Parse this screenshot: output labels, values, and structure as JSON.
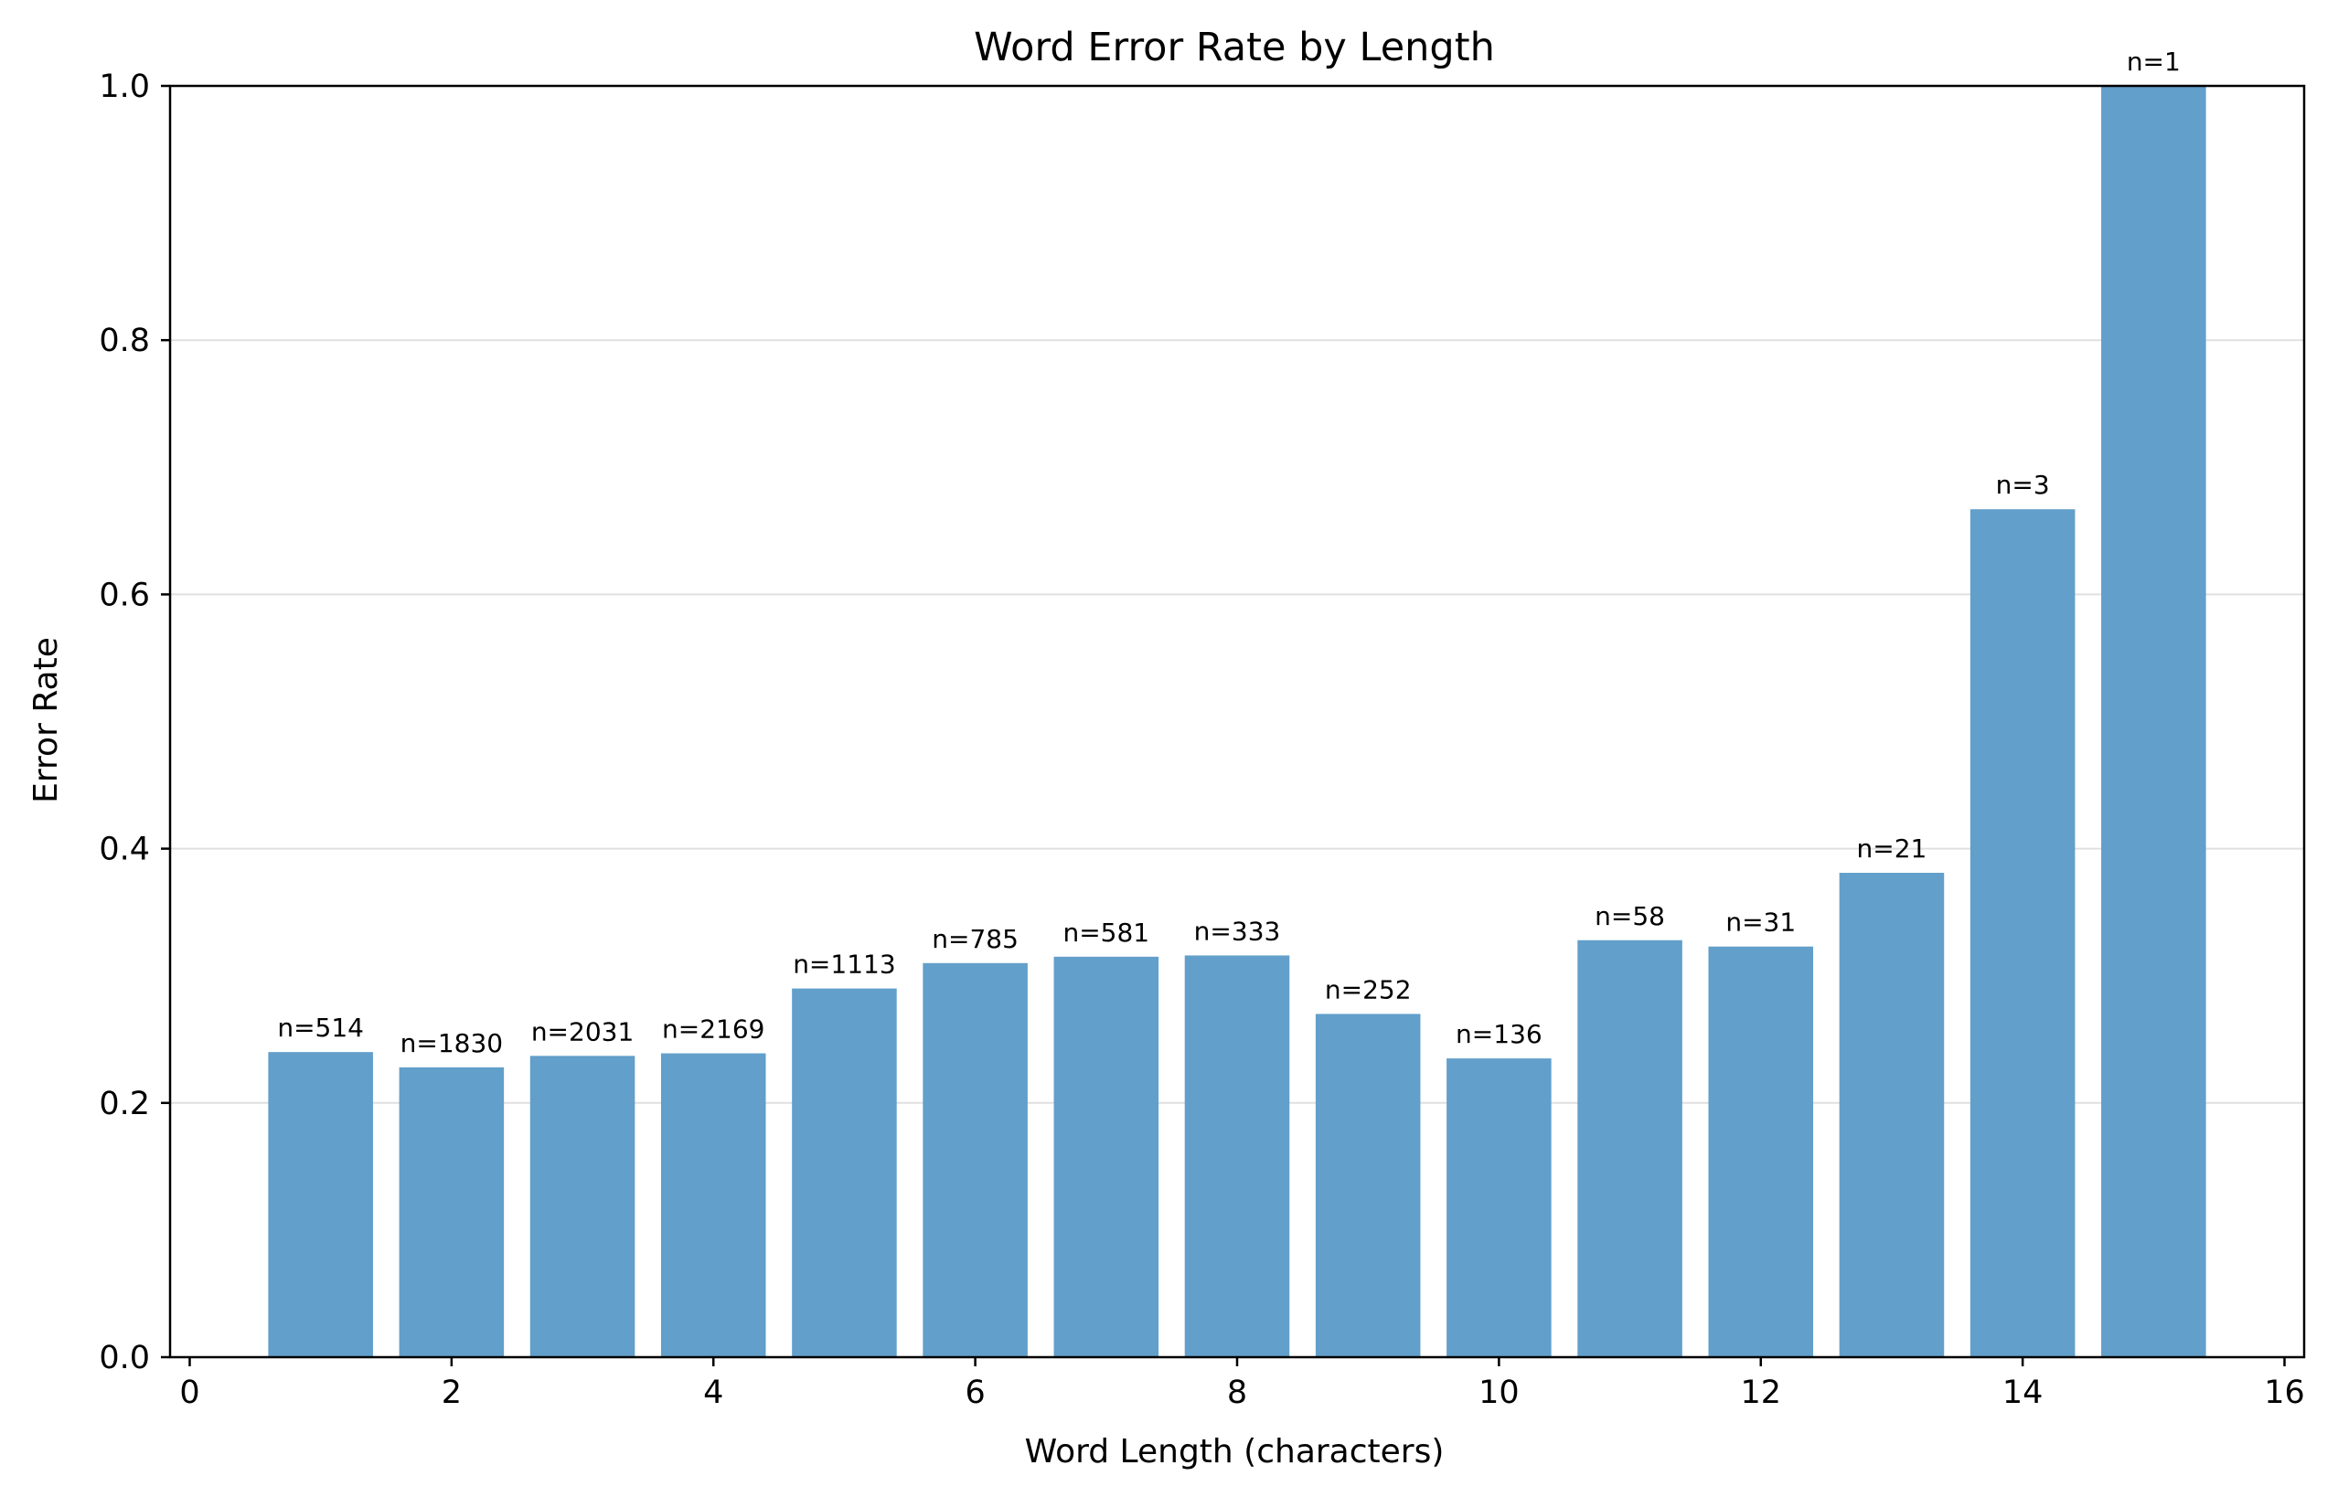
{
  "chart_data": {
    "type": "bar",
    "title": "Word Error Rate by Length",
    "xlabel": "Word Length (characters)",
    "ylabel": "Error Rate",
    "x": [
      1,
      2,
      3,
      4,
      5,
      6,
      7,
      8,
      9,
      10,
      11,
      12,
      13,
      14,
      15
    ],
    "values": [
      0.24,
      0.228,
      0.237,
      0.239,
      0.29,
      0.31,
      0.315,
      0.316,
      0.27,
      0.235,
      0.328,
      0.323,
      0.381,
      0.667,
      1.0
    ],
    "labels": [
      "n=514",
      "n=1830",
      "n=2031",
      "n=2169",
      "n=1113",
      "n=785",
      "n=581",
      "n=333",
      "n=252",
      "n=136",
      "n=58",
      "n=31",
      "n=21",
      "n=3",
      "n=1"
    ],
    "xlim": [
      -0.15,
      16.15
    ],
    "ylim": [
      0,
      1.0
    ],
    "xticks": [
      0,
      2,
      4,
      6,
      8,
      10,
      12,
      14,
      16
    ],
    "xtick_labels": [
      "0",
      "2",
      "4",
      "6",
      "8",
      "10",
      "12",
      "14",
      "16"
    ],
    "yticks": [
      0.0,
      0.2,
      0.4,
      0.6,
      0.8,
      1.0
    ],
    "ytick_labels": [
      "0.0",
      "0.2",
      "0.4",
      "0.6",
      "0.8",
      "1.0"
    ],
    "grid": "y",
    "bar_color": "#629fca",
    "grid_color": "#e0e0e0"
  }
}
